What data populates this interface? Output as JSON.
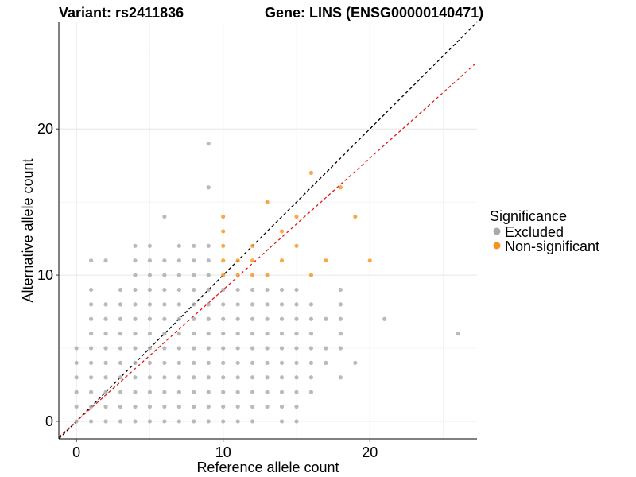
{
  "chart_data": {
    "type": "scatter",
    "title_left": "Variant: rs2411836",
    "title_right": "Gene: LINS (ENSG00000140471)",
    "xlabel": "Reference allele count",
    "ylabel": "Alternative allele count",
    "xlim": [
      -1.2,
      27.3
    ],
    "ylim": [
      -1.2,
      27.3
    ],
    "xticks": [
      0,
      10,
      20
    ],
    "yticks": [
      0,
      10,
      20
    ],
    "grid": true,
    "legend": {
      "title": "Significance",
      "position": "right",
      "entries": [
        {
          "label": "Excluded",
          "color": "#a9a9a9"
        },
        {
          "label": "Non-significant",
          "color": "#f7941d"
        }
      ]
    },
    "reference_lines": [
      {
        "name": "identity",
        "slope": 1,
        "intercept": 0,
        "color": "#000000",
        "style": "dashed"
      },
      {
        "name": "fitted",
        "slope": 0.9,
        "intercept": 0,
        "color": "#e41a1c",
        "style": "dashed"
      }
    ],
    "series": [
      {
        "name": "Excluded",
        "color": "#a9a9a9",
        "points": [
          [
            0,
            0
          ],
          [
            0,
            1
          ],
          [
            0,
            2
          ],
          [
            0,
            3
          ],
          [
            0,
            4
          ],
          [
            0,
            5
          ],
          [
            1,
            0
          ],
          [
            1,
            1
          ],
          [
            1,
            2
          ],
          [
            1,
            3
          ],
          [
            1,
            4
          ],
          [
            1,
            5
          ],
          [
            1,
            6
          ],
          [
            1,
            7
          ],
          [
            1,
            8
          ],
          [
            1,
            9
          ],
          [
            1,
            11
          ],
          [
            2,
            0
          ],
          [
            2,
            1
          ],
          [
            2,
            2
          ],
          [
            2,
            3
          ],
          [
            2,
            4
          ],
          [
            2,
            5
          ],
          [
            2,
            6
          ],
          [
            2,
            7
          ],
          [
            2,
            8
          ],
          [
            2,
            11
          ],
          [
            3,
            0
          ],
          [
            3,
            1
          ],
          [
            3,
            2
          ],
          [
            3,
            3
          ],
          [
            3,
            4
          ],
          [
            3,
            5
          ],
          [
            3,
            6
          ],
          [
            3,
            7
          ],
          [
            3,
            8
          ],
          [
            3,
            9
          ],
          [
            4,
            0
          ],
          [
            4,
            1
          ],
          [
            4,
            2
          ],
          [
            4,
            3
          ],
          [
            4,
            4
          ],
          [
            4,
            5
          ],
          [
            4,
            6
          ],
          [
            4,
            7
          ],
          [
            4,
            8
          ],
          [
            4,
            9
          ],
          [
            4,
            10
          ],
          [
            4,
            11
          ],
          [
            4,
            12
          ],
          [
            5,
            0
          ],
          [
            5,
            1
          ],
          [
            5,
            2
          ],
          [
            5,
            3
          ],
          [
            5,
            4
          ],
          [
            5,
            5
          ],
          [
            5,
            6
          ],
          [
            5,
            7
          ],
          [
            5,
            8
          ],
          [
            5,
            9
          ],
          [
            5,
            10
          ],
          [
            5,
            11
          ],
          [
            5,
            12
          ],
          [
            6,
            0
          ],
          [
            6,
            1
          ],
          [
            6,
            2
          ],
          [
            6,
            3
          ],
          [
            6,
            4
          ],
          [
            6,
            5
          ],
          [
            6,
            6
          ],
          [
            6,
            7
          ],
          [
            6,
            8
          ],
          [
            6,
            9
          ],
          [
            6,
            10
          ],
          [
            6,
            11
          ],
          [
            6,
            14
          ],
          [
            7,
            0
          ],
          [
            7,
            1
          ],
          [
            7,
            2
          ],
          [
            7,
            3
          ],
          [
            7,
            4
          ],
          [
            7,
            5
          ],
          [
            7,
            6
          ],
          [
            7,
            7
          ],
          [
            7,
            8
          ],
          [
            7,
            9
          ],
          [
            7,
            10
          ],
          [
            7,
            11
          ],
          [
            7,
            12
          ],
          [
            8,
            0
          ],
          [
            8,
            1
          ],
          [
            8,
            2
          ],
          [
            8,
            3
          ],
          [
            8,
            4
          ],
          [
            8,
            5
          ],
          [
            8,
            6
          ],
          [
            8,
            7
          ],
          [
            8,
            8
          ],
          [
            8,
            9
          ],
          [
            8,
            10
          ],
          [
            8,
            11
          ],
          [
            8,
            12
          ],
          [
            9,
            0
          ],
          [
            9,
            1
          ],
          [
            9,
            2
          ],
          [
            9,
            3
          ],
          [
            9,
            4
          ],
          [
            9,
            5
          ],
          [
            9,
            6
          ],
          [
            9,
            7
          ],
          [
            9,
            8
          ],
          [
            9,
            9
          ],
          [
            9,
            10
          ],
          [
            9,
            11
          ],
          [
            9,
            12
          ],
          [
            9,
            16
          ],
          [
            9,
            19
          ],
          [
            10,
            0
          ],
          [
            10,
            1
          ],
          [
            10,
            2
          ],
          [
            10,
            3
          ],
          [
            10,
            4
          ],
          [
            10,
            5
          ],
          [
            10,
            6
          ],
          [
            10,
            7
          ],
          [
            10,
            8
          ],
          [
            10,
            9
          ],
          [
            11,
            0
          ],
          [
            11,
            1
          ],
          [
            11,
            2
          ],
          [
            11,
            3
          ],
          [
            11,
            4
          ],
          [
            11,
            5
          ],
          [
            11,
            6
          ],
          [
            11,
            7
          ],
          [
            11,
            8
          ],
          [
            11,
            9
          ],
          [
            12,
            0
          ],
          [
            12,
            1
          ],
          [
            12,
            2
          ],
          [
            12,
            3
          ],
          [
            12,
            4
          ],
          [
            12,
            5
          ],
          [
            12,
            6
          ],
          [
            12,
            7
          ],
          [
            12,
            8
          ],
          [
            12,
            9
          ],
          [
            13,
            1
          ],
          [
            13,
            2
          ],
          [
            13,
            3
          ],
          [
            13,
            4
          ],
          [
            13,
            5
          ],
          [
            13,
            6
          ],
          [
            13,
            7
          ],
          [
            13,
            8
          ],
          [
            13,
            9
          ],
          [
            14,
            0
          ],
          [
            14,
            1
          ],
          [
            14,
            2
          ],
          [
            14,
            3
          ],
          [
            14,
            4
          ],
          [
            14,
            5
          ],
          [
            14,
            6
          ],
          [
            14,
            7
          ],
          [
            14,
            8
          ],
          [
            14,
            9
          ],
          [
            15,
            0
          ],
          [
            15,
            1
          ],
          [
            15,
            2
          ],
          [
            15,
            3
          ],
          [
            15,
            4
          ],
          [
            15,
            5
          ],
          [
            15,
            6
          ],
          [
            15,
            7
          ],
          [
            15,
            8
          ],
          [
            15,
            9
          ],
          [
            16,
            2
          ],
          [
            16,
            3
          ],
          [
            16,
            4
          ],
          [
            16,
            5
          ],
          [
            16,
            6
          ],
          [
            16,
            7
          ],
          [
            16,
            8
          ],
          [
            17,
            4
          ],
          [
            17,
            5
          ],
          [
            17,
            7
          ],
          [
            18,
            3
          ],
          [
            18,
            5
          ],
          [
            18,
            6
          ],
          [
            18,
            7
          ],
          [
            18,
            8
          ],
          [
            18,
            9
          ],
          [
            19,
            4
          ],
          [
            21,
            7
          ],
          [
            26,
            6
          ]
        ]
      },
      {
        "name": "Non-significant",
        "color": "#f7941d",
        "points": [
          [
            10,
            10
          ],
          [
            10,
            11
          ],
          [
            10,
            12
          ],
          [
            10,
            13
          ],
          [
            10,
            14
          ],
          [
            11,
            10
          ],
          [
            11,
            11
          ],
          [
            12,
            10
          ],
          [
            12,
            11
          ],
          [
            12,
            12
          ],
          [
            13,
            10
          ],
          [
            13,
            15
          ],
          [
            14,
            11
          ],
          [
            14,
            13
          ],
          [
            15,
            12
          ],
          [
            15,
            14
          ],
          [
            16,
            10
          ],
          [
            16,
            17
          ],
          [
            17,
            11
          ],
          [
            18,
            16
          ],
          [
            19,
            14
          ],
          [
            20,
            11
          ]
        ]
      }
    ]
  }
}
